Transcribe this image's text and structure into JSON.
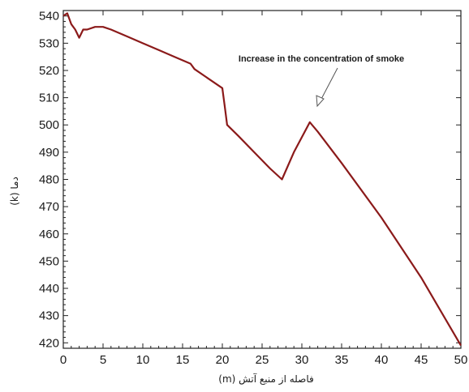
{
  "chart_data": {
    "type": "line",
    "title": "",
    "xlabel": "فاصله از منبع آتش (m)",
    "ylabel": "دما (k)",
    "xlim": [
      0,
      50
    ],
    "ylim": [
      418,
      542
    ],
    "x_ticks": [
      0,
      5,
      10,
      15,
      20,
      25,
      30,
      35,
      40,
      45,
      50
    ],
    "y_ticks": [
      420,
      430,
      440,
      450,
      460,
      470,
      480,
      490,
      500,
      510,
      520,
      530,
      540
    ],
    "grid": false,
    "series": [
      {
        "color": "#8b1a1a",
        "x": [
          0,
          0.5,
          1.0,
          1.5,
          2.0,
          2.5,
          3.0,
          4.0,
          4.5,
          5.0,
          6.0,
          8.0,
          10.0,
          12.0,
          14.0,
          16.0,
          16.5,
          18.0,
          20.0,
          20.3,
          20.6,
          22.0,
          24.0,
          26.0,
          27.5,
          29.0,
          31.0,
          32.0,
          35.0,
          40.0,
          45.0,
          50.0
        ],
        "y": [
          540,
          541,
          537,
          535,
          532,
          535,
          535,
          536,
          536,
          536,
          535,
          532.5,
          530,
          527.5,
          525,
          522.5,
          520.5,
          517.5,
          513.5,
          507,
          500,
          496,
          490,
          484,
          480,
          490,
          501,
          497.5,
          486,
          466,
          444,
          419
        ]
      }
    ],
    "annotations": [
      {
        "text": "Increase in the concentration of smoke",
        "x": 32,
        "y": 503
      }
    ]
  }
}
